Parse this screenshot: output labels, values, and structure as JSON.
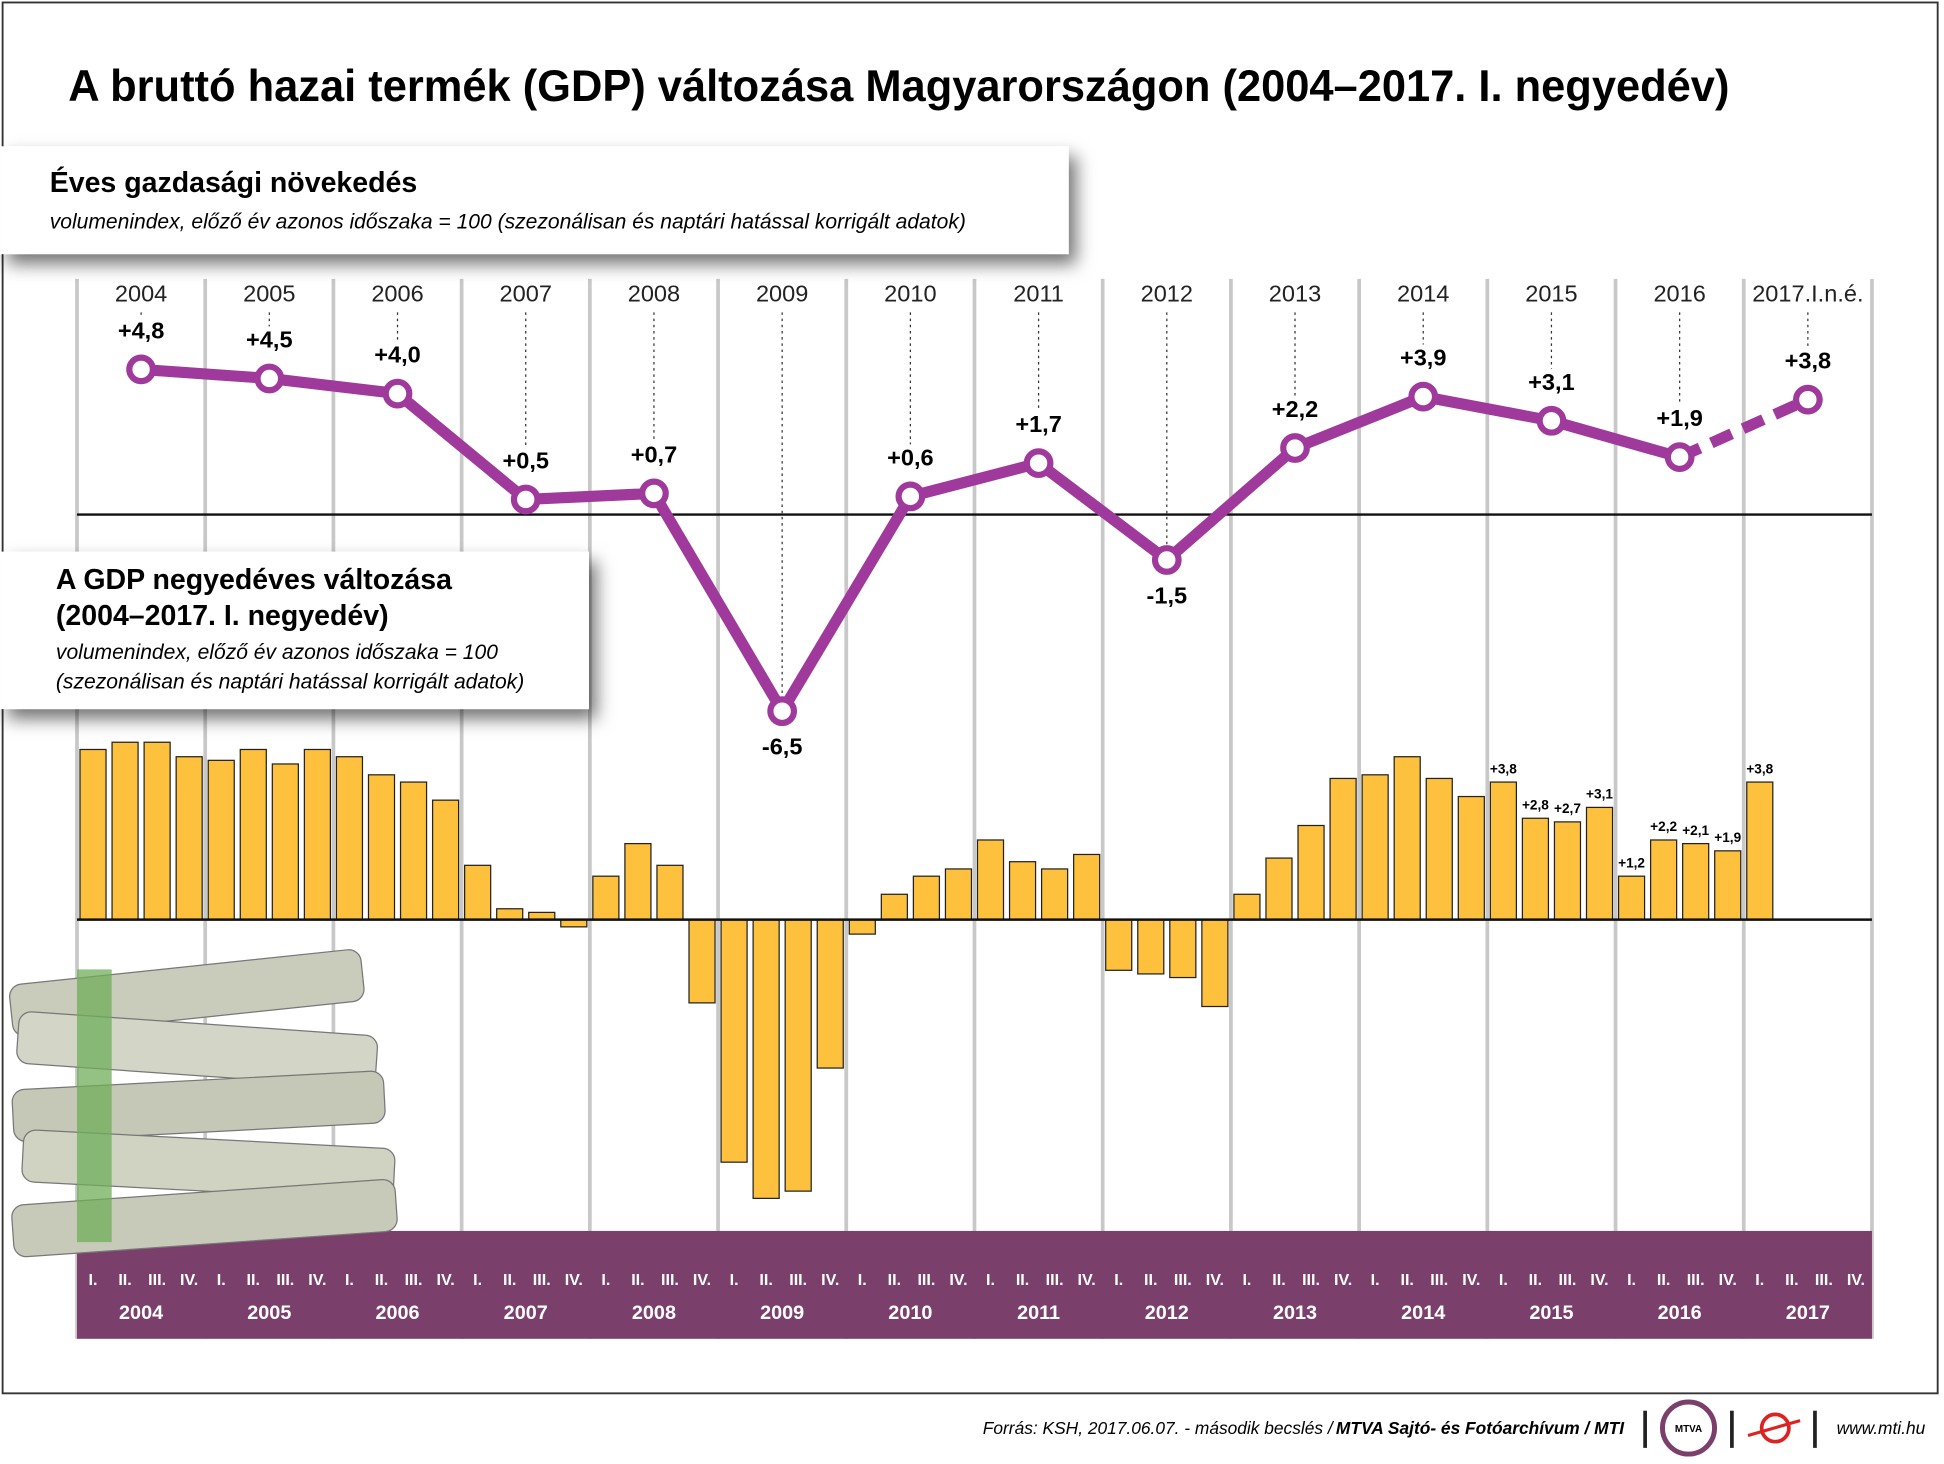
{
  "title": "A bruttó hazai termék (GDP) változása Magyarországon (2004–2017. I. negyedév)",
  "chart_data": [
    {
      "type": "line",
      "title": "Éves gazdasági növekedés",
      "subtitle": "volumenindex, előző év azonos időszaka = 100 (szezonálisan és naptári hatással korrigált adatok)",
      "categories": [
        "2004",
        "2005",
        "2006",
        "2007",
        "2008",
        "2009",
        "2010",
        "2011",
        "2012",
        "2013",
        "2014",
        "2015",
        "2016",
        "2017.I.n.é."
      ],
      "values": [
        4.8,
        4.5,
        4.0,
        0.5,
        0.7,
        -6.5,
        0.6,
        1.7,
        -1.5,
        2.2,
        3.9,
        3.1,
        1.9,
        3.8
      ],
      "value_labels": [
        "+4,8",
        "+4,5",
        "+4,0",
        "+0,5",
        "+0,7",
        "-6,5",
        "+0,6",
        "+1,7",
        "-1,5",
        "+2,2",
        "+3,9",
        "+3,1",
        "+1,9",
        "+3,8"
      ],
      "color": "#a0399c",
      "dashed_last": true,
      "ylim": [
        -8,
        6
      ]
    },
    {
      "type": "bar",
      "title": [
        "A GDP negyedéves változása",
        "(2004–2017. I. negyedév)"
      ],
      "subtitle": [
        "volumenindex, előző év azonos időszaka = 100",
        "(szezonálisan és naptári hatással korrigált adatok)"
      ],
      "categories": [
        "2004",
        "2005",
        "2006",
        "2007",
        "2008",
        "2009",
        "2010",
        "2011",
        "2012",
        "2013",
        "2014",
        "2015",
        "2016",
        "2017"
      ],
      "quarters": [
        "I.",
        "II.",
        "III.",
        "IV."
      ],
      "values": [
        [
          4.7,
          4.9,
          4.9,
          4.5
        ],
        [
          4.4,
          4.7,
          4.3,
          4.7
        ],
        [
          4.5,
          4.0,
          3.8,
          3.3
        ],
        [
          1.5,
          0.3,
          0.2,
          -0.2
        ],
        [
          1.2,
          2.1,
          1.5,
          -2.3
        ],
        [
          -6.7,
          -7.7,
          -7.5,
          -4.1
        ],
        [
          -0.4,
          0.7,
          1.2,
          1.4
        ],
        [
          2.2,
          1.6,
          1.4,
          1.8
        ],
        [
          -1.4,
          -1.5,
          -1.6,
          -2.4
        ],
        [
          0.7,
          1.7,
          2.6,
          3.9
        ],
        [
          4.0,
          4.5,
          3.9,
          3.4
        ],
        [
          3.8,
          2.8,
          2.7,
          3.1
        ],
        [
          1.2,
          2.2,
          2.1,
          1.9
        ],
        [
          3.8,
          null,
          null,
          null
        ]
      ],
      "value_labels": [
        null,
        null,
        null,
        null,
        null,
        null,
        null,
        null,
        null,
        null,
        null,
        [
          "+3,8",
          "+2,8",
          "+2,7",
          "+3,1"
        ],
        [
          "+1,2",
          "+2,2",
          "+2,1",
          "+1,9"
        ],
        [
          "+3,8",
          null,
          null,
          null
        ]
      ],
      "color": "#fec13d",
      "ylim": [
        -8.6,
        5.2
      ]
    }
  ],
  "footer": {
    "source": "Forrás: KSH, 2017.06.07. - második becslés / ",
    "credit": "MTVA Sajtó- és Fotóarchívum / MTI",
    "logo": "MTVA",
    "url": "www.mti.hu"
  }
}
